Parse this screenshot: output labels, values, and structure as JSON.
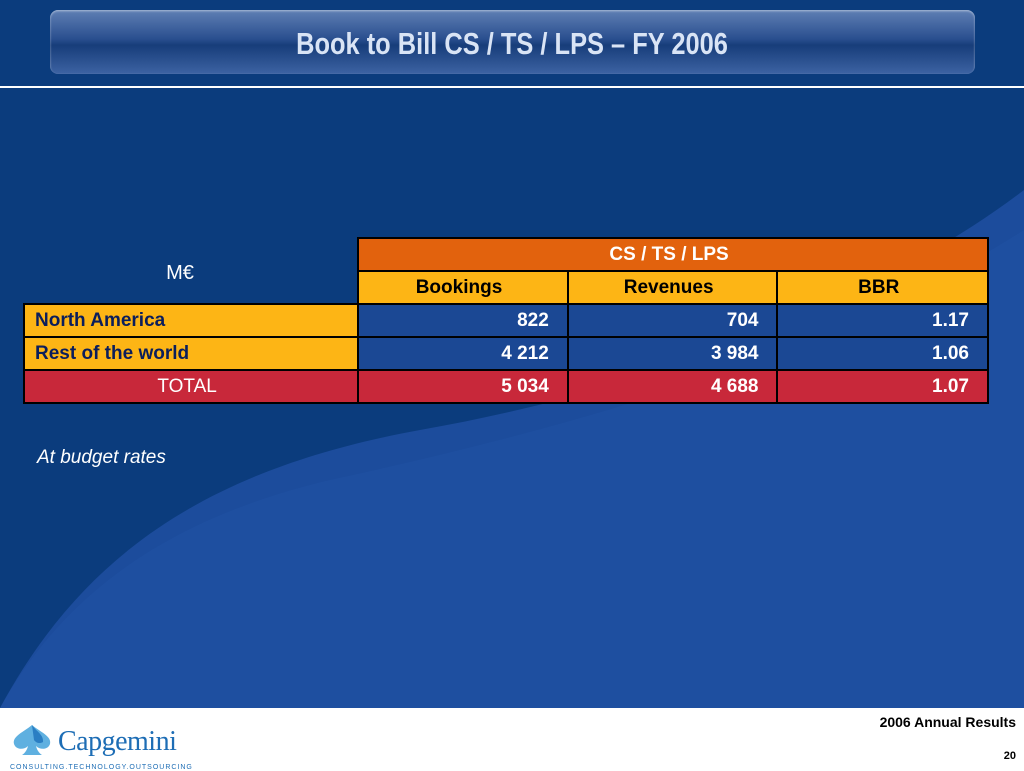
{
  "slide": {
    "title": "Book to Bill CS / TS / LPS – FY 2006",
    "unit_label": "M€",
    "note": "At budget rates"
  },
  "table": {
    "group_header": "CS / TS / LPS",
    "columns": [
      "Bookings",
      "Revenues",
      "BBR"
    ],
    "rows": [
      {
        "label": "North America",
        "bookings": "822",
        "revenues": "704",
        "bbr": "1.17"
      },
      {
        "label": "Rest of the world",
        "bookings": "4 212",
        "revenues": "3 984",
        "bbr": "1.06"
      }
    ],
    "total": {
      "label": "TOTAL",
      "bookings": "5 034",
      "revenues": "4 688",
      "bbr": "1.07"
    }
  },
  "footer": {
    "logo_text": "Capgemini",
    "logo_tagline": "CONSULTING.TECHNOLOGY.OUTSOURCING",
    "report_title": "2006 Annual Results",
    "page_number": "20"
  },
  "colors": {
    "background": "#0b3c7d",
    "header_orange": "#e2620d",
    "header_yellow": "#fdb515",
    "cell_blue": "#1b4894",
    "total_red": "#c8283a"
  }
}
